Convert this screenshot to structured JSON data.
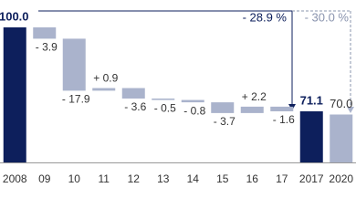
{
  "chart_data": {
    "type": "waterfall",
    "categories": [
      "2008",
      "09",
      "10",
      "11",
      "12",
      "13",
      "14",
      "15",
      "16",
      "17",
      "2017",
      "2020"
    ],
    "measure": [
      "absolute",
      "relative",
      "relative",
      "relative",
      "relative",
      "relative",
      "relative",
      "relative",
      "relative",
      "relative",
      "absolute",
      "absolute"
    ],
    "values": [
      100.0,
      -3.9,
      -17.9,
      0.9,
      -3.6,
      -0.5,
      -0.8,
      -3.7,
      2.2,
      -1.6,
      71.1,
      70.0
    ],
    "value_labels": [
      "100.0",
      "- 3.9",
      "- 17.9",
      "+ 0.9",
      "- 3.6",
      "- 0.5",
      "- 0.8",
      "- 3.7",
      "+ 2.2",
      "- 1.6",
      "71.1",
      "70.0"
    ],
    "colors": [
      "#0d1f5c",
      "#aab3cc",
      "#aab3cc",
      "#aab3cc",
      "#aab3cc",
      "#aab3cc",
      "#aab3cc",
      "#aab3cc",
      "#aab3cc",
      "#aab3cc",
      "#0d1f5c",
      "#aab3cc"
    ],
    "ylim": [
      53.5,
      100
    ],
    "annotations": [
      "- 28.9 %",
      "- 30.0 %"
    ]
  }
}
